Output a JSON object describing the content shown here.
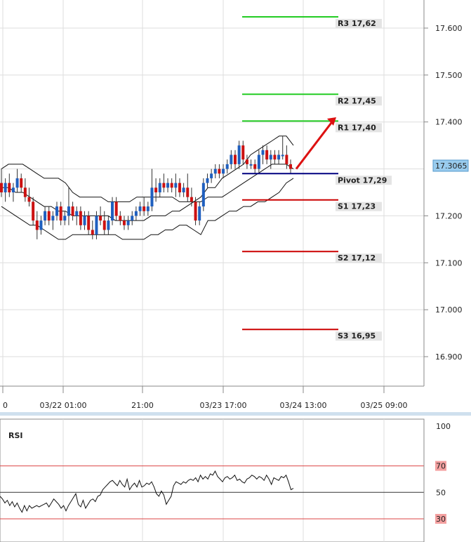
{
  "chart_data": {
    "type": "candlestick",
    "price": {
      "y_ticks": [
        17.6,
        17.5,
        17.4,
        17.2,
        17.1,
        17.0,
        16.9
      ],
      "y_tick_labels": [
        "17.600",
        "17.500",
        "17.400",
        "17.200",
        "17.100",
        "17.000",
        "16.900"
      ],
      "ylim": [
        16.84,
        17.65
      ],
      "current_price": "17.3065",
      "x_tick_labels": [
        "0",
        "03/22 01:00",
        "21:00",
        "03/23 17:00",
        "03/24 13:00",
        "03/25 09:00"
      ],
      "levels": [
        {
          "label": "R3 17,62",
          "value": 17.624,
          "color": "#22cc22"
        },
        {
          "label": "R2 17,45",
          "value": 17.459,
          "color": "#22cc22"
        },
        {
          "label": "R1 17,40",
          "value": 17.402,
          "color": "#22cc22"
        },
        {
          "label": "Pivot 17,29",
          "value": 17.29,
          "color": "#000080"
        },
        {
          "label": "S1 17,23",
          "value": 17.234,
          "color": "#cc0000"
        },
        {
          "label": "S2 17,12",
          "value": 17.124,
          "color": "#cc0000"
        },
        {
          "label": "S3 16,95",
          "value": 16.958,
          "color": "#cc0000"
        }
      ],
      "candles": [
        {
          "o": 17.27,
          "h": 17.3,
          "l": 17.24,
          "c": 17.25
        },
        {
          "o": 17.25,
          "h": 17.28,
          "l": 17.23,
          "c": 17.27
        },
        {
          "o": 17.27,
          "h": 17.29,
          "l": 17.24,
          "c": 17.25
        },
        {
          "o": 17.25,
          "h": 17.27,
          "l": 17.23,
          "c": 17.26
        },
        {
          "o": 17.26,
          "h": 17.3,
          "l": 17.25,
          "c": 17.28
        },
        {
          "o": 17.28,
          "h": 17.29,
          "l": 17.25,
          "c": 17.26
        },
        {
          "o": 17.26,
          "h": 17.28,
          "l": 17.23,
          "c": 17.24
        },
        {
          "o": 17.24,
          "h": 17.26,
          "l": 17.22,
          "c": 17.23
        },
        {
          "o": 17.23,
          "h": 17.24,
          "l": 17.18,
          "c": 17.19
        },
        {
          "o": 17.19,
          "h": 17.21,
          "l": 17.15,
          "c": 17.17
        },
        {
          "o": 17.17,
          "h": 17.2,
          "l": 17.16,
          "c": 17.19
        },
        {
          "o": 17.19,
          "h": 17.22,
          "l": 17.18,
          "c": 17.21
        },
        {
          "o": 17.21,
          "h": 17.22,
          "l": 17.18,
          "c": 17.19
        },
        {
          "o": 17.19,
          "h": 17.21,
          "l": 17.17,
          "c": 17.2
        },
        {
          "o": 17.2,
          "h": 17.23,
          "l": 17.19,
          "c": 17.22
        },
        {
          "o": 17.22,
          "h": 17.23,
          "l": 17.18,
          "c": 17.19
        },
        {
          "o": 17.19,
          "h": 17.21,
          "l": 17.18,
          "c": 17.2
        },
        {
          "o": 17.2,
          "h": 17.26,
          "l": 17.18,
          "c": 17.22
        },
        {
          "o": 17.22,
          "h": 17.23,
          "l": 17.19,
          "c": 17.2
        },
        {
          "o": 17.2,
          "h": 17.22,
          "l": 17.18,
          "c": 17.21
        },
        {
          "o": 17.21,
          "h": 17.22,
          "l": 17.17,
          "c": 17.18
        },
        {
          "o": 17.18,
          "h": 17.21,
          "l": 17.17,
          "c": 17.2
        },
        {
          "o": 17.2,
          "h": 17.21,
          "l": 17.16,
          "c": 17.17
        },
        {
          "o": 17.17,
          "h": 17.19,
          "l": 17.15,
          "c": 17.16
        },
        {
          "o": 17.16,
          "h": 17.21,
          "l": 17.15,
          "c": 17.2
        },
        {
          "o": 17.2,
          "h": 17.22,
          "l": 17.18,
          "c": 17.19
        },
        {
          "o": 17.19,
          "h": 17.21,
          "l": 17.16,
          "c": 17.17
        },
        {
          "o": 17.17,
          "h": 17.2,
          "l": 17.16,
          "c": 17.19
        },
        {
          "o": 17.19,
          "h": 17.24,
          "l": 17.18,
          "c": 17.23
        },
        {
          "o": 17.23,
          "h": 17.24,
          "l": 17.19,
          "c": 17.2
        },
        {
          "o": 17.2,
          "h": 17.21,
          "l": 17.18,
          "c": 17.19
        },
        {
          "o": 17.19,
          "h": 17.2,
          "l": 17.17,
          "c": 17.18
        },
        {
          "o": 17.18,
          "h": 17.2,
          "l": 17.17,
          "c": 17.19
        },
        {
          "o": 17.19,
          "h": 17.21,
          "l": 17.18,
          "c": 17.2
        },
        {
          "o": 17.2,
          "h": 17.22,
          "l": 17.19,
          "c": 17.21
        },
        {
          "o": 17.21,
          "h": 17.23,
          "l": 17.2,
          "c": 17.22
        },
        {
          "o": 17.22,
          "h": 17.24,
          "l": 17.2,
          "c": 17.21
        },
        {
          "o": 17.21,
          "h": 17.23,
          "l": 17.2,
          "c": 17.22
        },
        {
          "o": 17.22,
          "h": 17.3,
          "l": 17.21,
          "c": 17.26
        },
        {
          "o": 17.26,
          "h": 17.28,
          "l": 17.23,
          "c": 17.25
        },
        {
          "o": 17.25,
          "h": 17.28,
          "l": 17.24,
          "c": 17.27
        },
        {
          "o": 17.27,
          "h": 17.29,
          "l": 17.25,
          "c": 17.26
        },
        {
          "o": 17.26,
          "h": 17.28,
          "l": 17.25,
          "c": 17.27
        },
        {
          "o": 17.27,
          "h": 17.28,
          "l": 17.25,
          "c": 17.26
        },
        {
          "o": 17.26,
          "h": 17.29,
          "l": 17.24,
          "c": 17.27
        },
        {
          "o": 17.27,
          "h": 17.28,
          "l": 17.24,
          "c": 17.25
        },
        {
          "o": 17.25,
          "h": 17.27,
          "l": 17.24,
          "c": 17.26
        },
        {
          "o": 17.26,
          "h": 17.29,
          "l": 17.23,
          "c": 17.24
        },
        {
          "o": 17.24,
          "h": 17.26,
          "l": 17.22,
          "c": 17.23
        },
        {
          "o": 17.23,
          "h": 17.24,
          "l": 17.18,
          "c": 17.19
        },
        {
          "o": 17.19,
          "h": 17.23,
          "l": 17.18,
          "c": 17.22
        },
        {
          "o": 17.22,
          "h": 17.28,
          "l": 17.21,
          "c": 17.27
        },
        {
          "o": 17.27,
          "h": 17.29,
          "l": 17.26,
          "c": 17.28
        },
        {
          "o": 17.28,
          "h": 17.3,
          "l": 17.27,
          "c": 17.29
        },
        {
          "o": 17.29,
          "h": 17.31,
          "l": 17.28,
          "c": 17.3
        },
        {
          "o": 17.3,
          "h": 17.31,
          "l": 17.28,
          "c": 17.29
        },
        {
          "o": 17.29,
          "h": 17.31,
          "l": 17.28,
          "c": 17.3
        },
        {
          "o": 17.3,
          "h": 17.32,
          "l": 17.29,
          "c": 17.31
        },
        {
          "o": 17.31,
          "h": 17.34,
          "l": 17.3,
          "c": 17.33
        },
        {
          "o": 17.33,
          "h": 17.34,
          "l": 17.3,
          "c": 17.31
        },
        {
          "o": 17.31,
          "h": 17.36,
          "l": 17.3,
          "c": 17.35
        },
        {
          "o": 17.35,
          "h": 17.36,
          "l": 17.31,
          "c": 17.32
        },
        {
          "o": 17.32,
          "h": 17.33,
          "l": 17.3,
          "c": 17.31
        },
        {
          "o": 17.31,
          "h": 17.32,
          "l": 17.3,
          "c": 17.31
        },
        {
          "o": 17.31,
          "h": 17.32,
          "l": 17.29,
          "c": 17.3
        },
        {
          "o": 17.3,
          "h": 17.34,
          "l": 17.29,
          "c": 17.33
        },
        {
          "o": 17.33,
          "h": 17.35,
          "l": 17.31,
          "c": 17.34
        },
        {
          "o": 17.34,
          "h": 17.35,
          "l": 17.31,
          "c": 17.32
        },
        {
          "o": 17.32,
          "h": 17.34,
          "l": 17.3,
          "c": 17.33
        },
        {
          "o": 17.33,
          "h": 17.34,
          "l": 17.31,
          "c": 17.32
        },
        {
          "o": 17.32,
          "h": 17.34,
          "l": 17.31,
          "c": 17.33
        },
        {
          "o": 17.33,
          "h": 17.37,
          "l": 17.32,
          "c": 17.33
        },
        {
          "o": 17.33,
          "h": 17.35,
          "l": 17.3,
          "c": 17.31
        },
        {
          "o": 17.31,
          "h": 17.32,
          "l": 17.29,
          "c": 17.3
        }
      ],
      "bollinger": {
        "upper": [
          17.3,
          17.31,
          17.31,
          17.31,
          17.3,
          17.29,
          17.28,
          17.28,
          17.28,
          17.27,
          17.25,
          17.24,
          17.24,
          17.24,
          17.24,
          17.23,
          17.23,
          17.23,
          17.23,
          17.24,
          17.24,
          17.24,
          17.24,
          17.24,
          17.24,
          17.23,
          17.23,
          17.23,
          17.24,
          17.26,
          17.26,
          17.28,
          17.29,
          17.3,
          17.31,
          17.33,
          17.34,
          17.35,
          17.36,
          17.37,
          17.37,
          17.35
        ],
        "lower": [
          17.22,
          17.21,
          17.2,
          17.19,
          17.18,
          17.18,
          17.17,
          17.16,
          17.15,
          17.15,
          17.16,
          17.16,
          17.16,
          17.16,
          17.16,
          17.16,
          17.16,
          17.15,
          17.15,
          17.15,
          17.15,
          17.16,
          17.16,
          17.17,
          17.17,
          17.18,
          17.18,
          17.17,
          17.16,
          17.19,
          17.19,
          17.2,
          17.21,
          17.21,
          17.22,
          17.22,
          17.23,
          17.23,
          17.24,
          17.25,
          17.27,
          17.28
        ],
        "middle": [
          17.26,
          17.26,
          17.25,
          17.25,
          17.24,
          17.23,
          17.22,
          17.22,
          17.21,
          17.21,
          17.2,
          17.2,
          17.2,
          17.2,
          17.2,
          17.2,
          17.19,
          17.19,
          17.19,
          17.19,
          17.19,
          17.2,
          17.2,
          17.2,
          17.21,
          17.21,
          17.22,
          17.23,
          17.23,
          17.24,
          17.24,
          17.24,
          17.25,
          17.26,
          17.27,
          17.28,
          17.29,
          17.3,
          17.31,
          17.31,
          17.31,
          17.3
        ]
      },
      "arrow": {
        "from": [
          17.3,
          0.84
        ],
        "to": [
          17.41,
          0.94
        ],
        "color": "#dd1111"
      }
    },
    "rsi": {
      "title": "RSI",
      "y_tick_labels": [
        "100",
        "70",
        "50",
        "30"
      ],
      "ylim": [
        0,
        100
      ],
      "levels": [
        70,
        50,
        30
      ],
      "values": [
        47,
        45,
        42,
        44,
        40,
        43,
        39,
        42,
        38,
        35,
        40,
        36,
        40,
        38,
        39,
        40,
        39,
        40,
        41,
        42,
        39,
        42,
        45,
        43,
        41,
        38,
        40,
        36,
        40,
        43,
        46,
        49,
        41,
        39,
        44,
        38,
        41,
        44,
        45,
        43,
        47,
        48,
        52,
        54,
        56,
        58,
        59,
        57,
        55,
        59,
        56,
        54,
        60,
        52,
        55,
        57,
        54,
        59,
        54,
        55,
        57,
        56,
        58,
        54,
        49,
        47,
        51,
        48,
        41,
        44,
        47,
        55,
        58,
        57,
        56,
        58,
        57,
        59,
        60,
        59,
        61,
        58,
        63,
        60,
        62,
        60,
        64,
        63,
        66,
        62,
        60,
        58,
        61,
        62,
        60,
        61,
        63,
        59,
        60,
        58,
        57,
        60,
        61,
        63,
        62,
        60,
        62,
        61,
        59,
        63,
        60,
        56,
        61,
        60,
        59,
        62,
        61,
        63,
        58,
        52,
        53
      ]
    }
  }
}
